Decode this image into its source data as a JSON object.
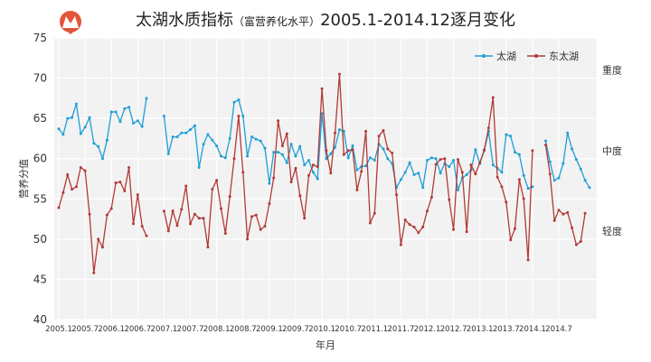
{
  "chart_data": {
    "type": "line",
    "title_main": "太湖水质指标",
    "title_paren_open": "（",
    "title_sub": "富营养化水平",
    "title_paren_close": "）",
    "title_tail": "2005.1-2014.12逐月变化",
    "xlabel": "年月",
    "ylabel": "营养分值",
    "ylim": [
      40,
      75
    ],
    "yticks": [
      40,
      45,
      50,
      55,
      60,
      65,
      70,
      75
    ],
    "xtick_labels": [
      "2005.1",
      "2005.7",
      "2006.1",
      "2006.7",
      "2007.1",
      "2007.7",
      "2008.1",
      "2008.7",
      "2009.1",
      "2009.7",
      "2010.1",
      "2010.7",
      "2011.1",
      "2011.7",
      "2012.1",
      "2012.7",
      "2013.1",
      "2013.7",
      "2014.1",
      "2014.7"
    ],
    "right_labels": [
      {
        "text": "重度",
        "y": 71
      },
      {
        "text": "中度",
        "y": 61
      },
      {
        "text": "轻度",
        "y": 51
      }
    ],
    "grid": true,
    "legend_position": "top-right",
    "series": [
      {
        "name": "太湖",
        "color": "#1e9fd6",
        "values": [
          63.7,
          63.0,
          65.0,
          65.1,
          66.8,
          63.1,
          63.9,
          65.1,
          61.9,
          61.5,
          60.0,
          62.3,
          65.8,
          65.8,
          64.6,
          66.2,
          66.4,
          64.4,
          64.7,
          64.0,
          67.5,
          null,
          null,
          null,
          65.3,
          60.6,
          62.7,
          62.7,
          63.2,
          63.2,
          63.6,
          64.1,
          58.9,
          61.8,
          63.0,
          62.3,
          61.6,
          60.3,
          60.1,
          62.5,
          67.0,
          67.3,
          65.3,
          60.3,
          62.7,
          62.4,
          62.2,
          61.3,
          56.9,
          60.8,
          60.8,
          60.5,
          59.5,
          61.8,
          60.3,
          61.5,
          59.2,
          59.8,
          58.3,
          57.5,
          65.6,
          60.0,
          60.6,
          61.4,
          63.6,
          63.4,
          60.1,
          61.6,
          58.6,
          59.0,
          59.1,
          60.1,
          59.8,
          61.8,
          61.2,
          60.0,
          59.4,
          56.4,
          57.4,
          58.3,
          59.5,
          58.0,
          58.2,
          56.4,
          59.8,
          60.1,
          60.0,
          58.2,
          59.4,
          59.0,
          59.8,
          56.1,
          57.6,
          58.0,
          58.6,
          61.1,
          59.4,
          61.0,
          63.4,
          59.2,
          58.8,
          58.3,
          63.0,
          62.8,
          60.8,
          60.5,
          57.9,
          56.3,
          56.5,
          null,
          null,
          62.2,
          59.6,
          57.3,
          57.6,
          59.4,
          63.2,
          61.2,
          59.9,
          58.7,
          57.3,
          56.4
        ]
      },
      {
        "name": "东太湖",
        "color": "#b23a36",
        "values": [
          53.9,
          55.8,
          58.0,
          56.2,
          56.5,
          58.9,
          58.5,
          53.1,
          45.8,
          50.0,
          49.0,
          53.0,
          53.8,
          57.0,
          57.1,
          56.0,
          58.9,
          51.9,
          55.5,
          51.6,
          50.4,
          null,
          null,
          null,
          53.5,
          51.0,
          53.5,
          51.7,
          53.7,
          56.6,
          51.9,
          53.1,
          52.6,
          52.6,
          49.0,
          56.2,
          57.3,
          53.8,
          50.7,
          55.3,
          60.0,
          65.3,
          58.3,
          50.0,
          52.8,
          53.0,
          51.2,
          51.6,
          54.4,
          57.6,
          64.7,
          61.6,
          63.1,
          57.1,
          58.8,
          55.4,
          52.6,
          57.9,
          59.2,
          59.0,
          68.7,
          61.0,
          58.2,
          63.2,
          70.5,
          60.5,
          61.0,
          61.1,
          56.1,
          58.4,
          63.4,
          52.0,
          53.2,
          62.8,
          63.5,
          61.2,
          60.7,
          55.5,
          49.3,
          52.4,
          51.8,
          51.5,
          50.8,
          51.5,
          53.5,
          55.2,
          59.3,
          59.9,
          60.0,
          54.9,
          51.2,
          59.9,
          58.3,
          50.9,
          59.2,
          58.1,
          59.5,
          61.1,
          63.8,
          67.6,
          57.7,
          56.5,
          54.6,
          49.9,
          51.3,
          57.4,
          55.0,
          47.4,
          61.0,
          null,
          null,
          61.7,
          58.1,
          52.3,
          53.6,
          53.1,
          53.3,
          51.4,
          49.3,
          49.7,
          53.2,
          null
        ]
      }
    ]
  }
}
